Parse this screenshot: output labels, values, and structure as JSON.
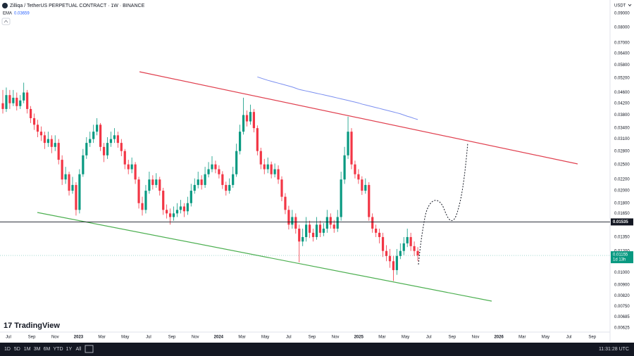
{
  "chart_data": {
    "type": "candlestick",
    "title": "Zilliqa / TetherUS PERPETUAL CONTRACT · 1W · BINANCE",
    "currency": "USDT",
    "log_scale": true,
    "grid": false,
    "up_color": "#089981",
    "down_color": "#f23645",
    "ylim": [
      0.00575,
      0.1008
    ],
    "yticks": [
      {
        "value": 0.09,
        "label": "0.09000"
      },
      {
        "value": 0.08,
        "label": "0.08000"
      },
      {
        "value": 0.07,
        "label": "0.07000"
      },
      {
        "value": 0.064,
        "label": "0.06400"
      },
      {
        "value": 0.058,
        "label": "0.05800"
      },
      {
        "value": 0.052,
        "label": "0.05200"
      },
      {
        "value": 0.046,
        "label": "0.04600"
      },
      {
        "value": 0.042,
        "label": "0.04200"
      },
      {
        "value": 0.038,
        "label": "0.03800"
      },
      {
        "value": 0.034,
        "label": "0.03400"
      },
      {
        "value": 0.031,
        "label": "0.03100"
      },
      {
        "value": 0.028,
        "label": "0.02800"
      },
      {
        "value": 0.025,
        "label": "0.02500"
      },
      {
        "value": 0.022,
        "label": "0.02200"
      },
      {
        "value": 0.02,
        "label": "0.02000"
      },
      {
        "value": 0.018,
        "label": "0.01800"
      },
      {
        "value": 0.0165,
        "label": "0.01650"
      },
      {
        "value": 0.0135,
        "label": "0.01350"
      },
      {
        "value": 0.012,
        "label": "0.01200"
      },
      {
        "value": 0.01,
        "label": "0.01000"
      },
      {
        "value": 0.009,
        "label": "0.00900"
      },
      {
        "value": 0.0082,
        "label": "0.00820"
      },
      {
        "value": 0.0075,
        "label": "0.00750"
      },
      {
        "value": 0.00685,
        "label": "0.00685"
      },
      {
        "value": 0.00625,
        "label": "0.00625"
      }
    ],
    "xtick_labels": [
      "Jul",
      "Sep",
      "Nov",
      "2023",
      "Mar",
      "May",
      "Jul",
      "Sep",
      "Nov",
      "2024",
      "Mar",
      "May",
      "Jul",
      "Sep",
      "Nov",
      "2025",
      "Mar",
      "May",
      "Jul",
      "Sep",
      "Nov",
      "2026",
      "Mar",
      "May",
      "Jul",
      "Sep"
    ],
    "ohlc": [
      [
        0.042,
        0.047,
        0.0385,
        0.04
      ],
      [
        0.04,
        0.048,
        0.039,
        0.045
      ],
      [
        0.045,
        0.047,
        0.04,
        0.042
      ],
      [
        0.042,
        0.047,
        0.041,
        0.044
      ],
      [
        0.044,
        0.046,
        0.0395,
        0.041
      ],
      [
        0.041,
        0.045,
        0.04,
        0.043
      ],
      [
        0.043,
        0.05,
        0.042,
        0.046
      ],
      [
        0.046,
        0.047,
        0.0385,
        0.04
      ],
      [
        0.04,
        0.041,
        0.0355,
        0.037
      ],
      [
        0.037,
        0.0385,
        0.0335,
        0.035
      ],
      [
        0.035,
        0.0365,
        0.0315,
        0.033
      ],
      [
        0.033,
        0.0345,
        0.0305,
        0.032
      ],
      [
        0.032,
        0.033,
        0.0285,
        0.03
      ],
      [
        0.03,
        0.033,
        0.029,
        0.031
      ],
      [
        0.031,
        0.032,
        0.0275,
        0.029
      ],
      [
        0.029,
        0.032,
        0.028,
        0.03
      ],
      [
        0.03,
        0.031,
        0.025,
        0.026
      ],
      [
        0.026,
        0.027,
        0.021,
        0.022
      ],
      [
        0.022,
        0.0245,
        0.0212,
        0.023
      ],
      [
        0.023,
        0.0235,
        0.0192,
        0.02
      ],
      [
        0.02,
        0.0225,
        0.0195,
        0.021
      ],
      [
        0.021,
        0.0215,
        0.0162,
        0.017
      ],
      [
        0.017,
        0.024,
        0.0165,
        0.023
      ],
      [
        0.023,
        0.0285,
        0.0225,
        0.027
      ],
      [
        0.027,
        0.0315,
        0.0262,
        0.03
      ],
      [
        0.03,
        0.033,
        0.029,
        0.031
      ],
      [
        0.031,
        0.035,
        0.03,
        0.033
      ],
      [
        0.033,
        0.037,
        0.032,
        0.035
      ],
      [
        0.035,
        0.0355,
        0.028,
        0.029
      ],
      [
        0.029,
        0.03,
        0.0255,
        0.027
      ],
      [
        0.027,
        0.0315,
        0.0262,
        0.03
      ],
      [
        0.03,
        0.033,
        0.029,
        0.031
      ],
      [
        0.031,
        0.034,
        0.03,
        0.032
      ],
      [
        0.032,
        0.033,
        0.0288,
        0.03
      ],
      [
        0.03,
        0.031,
        0.0268,
        0.028
      ],
      [
        0.028,
        0.0285,
        0.024,
        0.025
      ],
      [
        0.025,
        0.026,
        0.023,
        0.024
      ],
      [
        0.024,
        0.0265,
        0.0232,
        0.025
      ],
      [
        0.025,
        0.0255,
        0.0212,
        0.022
      ],
      [
        0.022,
        0.0225,
        0.0172,
        0.018
      ],
      [
        0.018,
        0.019,
        0.0162,
        0.017
      ],
      [
        0.017,
        0.021,
        0.0165,
        0.02
      ],
      [
        0.02,
        0.0235,
        0.0195,
        0.022
      ],
      [
        0.022,
        0.0228,
        0.0202,
        0.021
      ],
      [
        0.021,
        0.0232,
        0.0205,
        0.022
      ],
      [
        0.022,
        0.0225,
        0.0192,
        0.02
      ],
      [
        0.02,
        0.0205,
        0.0163,
        0.017
      ],
      [
        0.017,
        0.0178,
        0.0158,
        0.0165
      ],
      [
        0.0165,
        0.0172,
        0.015,
        0.016
      ],
      [
        0.016,
        0.0175,
        0.0155,
        0.0165
      ],
      [
        0.0165,
        0.018,
        0.016,
        0.017
      ],
      [
        0.017,
        0.0185,
        0.0165,
        0.0175
      ],
      [
        0.0175,
        0.018,
        0.016,
        0.0168
      ],
      [
        0.0168,
        0.019,
        0.0163,
        0.018
      ],
      [
        0.018,
        0.0212,
        0.0175,
        0.02
      ],
      [
        0.02,
        0.0222,
        0.0195,
        0.021
      ],
      [
        0.021,
        0.0235,
        0.0204,
        0.022
      ],
      [
        0.022,
        0.0228,
        0.0202,
        0.021
      ],
      [
        0.021,
        0.0245,
        0.0205,
        0.023
      ],
      [
        0.023,
        0.0255,
        0.0224,
        0.024
      ],
      [
        0.024,
        0.0268,
        0.0234,
        0.025
      ],
      [
        0.025,
        0.0258,
        0.0232,
        0.024
      ],
      [
        0.024,
        0.0248,
        0.0222,
        0.023
      ],
      [
        0.023,
        0.0236,
        0.0203,
        0.021
      ],
      [
        0.021,
        0.0216,
        0.0192,
        0.02
      ],
      [
        0.02,
        0.0222,
        0.0195,
        0.021
      ],
      [
        0.021,
        0.0245,
        0.0205,
        0.023
      ],
      [
        0.023,
        0.0298,
        0.0225,
        0.028
      ],
      [
        0.028,
        0.035,
        0.0272,
        0.033
      ],
      [
        0.033,
        0.044,
        0.0322,
        0.038
      ],
      [
        0.038,
        0.0395,
        0.0345,
        0.036
      ],
      [
        0.036,
        0.0415,
        0.035,
        0.039
      ],
      [
        0.039,
        0.04,
        0.0328,
        0.034
      ],
      [
        0.034,
        0.0348,
        0.027,
        0.028
      ],
      [
        0.028,
        0.0288,
        0.024,
        0.025
      ],
      [
        0.025,
        0.0262,
        0.023,
        0.024
      ],
      [
        0.024,
        0.0265,
        0.0232,
        0.025
      ],
      [
        0.025,
        0.0256,
        0.0222,
        0.023
      ],
      [
        0.023,
        0.0252,
        0.0224,
        0.024
      ],
      [
        0.024,
        0.0248,
        0.0212,
        0.022
      ],
      [
        0.022,
        0.0226,
        0.0183,
        0.019
      ],
      [
        0.019,
        0.0196,
        0.0164,
        0.017
      ],
      [
        0.017,
        0.0176,
        0.0144,
        0.015
      ],
      [
        0.015,
        0.017,
        0.0145,
        0.016
      ],
      [
        0.016,
        0.0165,
        0.0139,
        0.0145
      ],
      [
        0.0145,
        0.015,
        0.0109,
        0.013
      ],
      [
        0.013,
        0.0145,
        0.0125,
        0.0135
      ],
      [
        0.0135,
        0.016,
        0.013,
        0.015
      ],
      [
        0.015,
        0.0155,
        0.0134,
        0.014
      ],
      [
        0.014,
        0.0145,
        0.013,
        0.0135
      ],
      [
        0.0135,
        0.016,
        0.0132,
        0.015
      ],
      [
        0.015,
        0.0155,
        0.0135,
        0.014
      ],
      [
        0.014,
        0.0152,
        0.0136,
        0.0145
      ],
      [
        0.0145,
        0.017,
        0.014,
        0.016
      ],
      [
        0.016,
        0.0165,
        0.0145,
        0.015
      ],
      [
        0.015,
        0.0156,
        0.014,
        0.0145
      ],
      [
        0.0145,
        0.017,
        0.0141,
        0.016
      ],
      [
        0.016,
        0.0235,
        0.0155,
        0.022
      ],
      [
        0.022,
        0.029,
        0.0212,
        0.027
      ],
      [
        0.027,
        0.0375,
        0.0262,
        0.033
      ],
      [
        0.033,
        0.034,
        0.024,
        0.025
      ],
      [
        0.025,
        0.0258,
        0.0222,
        0.023
      ],
      [
        0.023,
        0.024,
        0.0212,
        0.022
      ],
      [
        0.022,
        0.0226,
        0.0193,
        0.02
      ],
      [
        0.02,
        0.0222,
        0.0195,
        0.021
      ],
      [
        0.021,
        0.0215,
        0.0155,
        0.016
      ],
      [
        0.016,
        0.0165,
        0.014,
        0.0145
      ],
      [
        0.0145,
        0.015,
        0.0135,
        0.014
      ],
      [
        0.014,
        0.0145,
        0.0128,
        0.0135
      ],
      [
        0.0135,
        0.014,
        0.0114,
        0.012
      ],
      [
        0.012,
        0.0126,
        0.011,
        0.0115
      ],
      [
        0.0115,
        0.0122,
        0.0104,
        0.011
      ],
      [
        0.011,
        0.0115,
        0.0093,
        0.0102
      ],
      [
        0.0102,
        0.0122,
        0.0098,
        0.0115
      ],
      [
        0.0115,
        0.0128,
        0.0112,
        0.012
      ],
      [
        0.012,
        0.0135,
        0.0116,
        0.0128
      ],
      [
        0.0128,
        0.0145,
        0.0124,
        0.0135
      ],
      [
        0.0135,
        0.014,
        0.012,
        0.0125
      ],
      [
        0.0125,
        0.013,
        0.0115,
        0.012
      ],
      [
        0.012,
        0.0124,
        0.011,
        0.01155
      ]
    ],
    "ema": {
      "name": "EMA",
      "color": "#7b8ff0",
      "values": [
        null,
        null,
        null,
        null,
        null,
        null,
        null,
        null,
        null,
        null,
        null,
        null,
        null,
        null,
        null,
        null,
        null,
        null,
        null,
        null,
        null,
        null,
        null,
        null,
        null,
        null,
        null,
        null,
        null,
        null,
        null,
        null,
        null,
        null,
        null,
        null,
        null,
        null,
        null,
        null,
        null,
        null,
        null,
        null,
        null,
        null,
        null,
        null,
        null,
        null,
        null,
        null,
        null,
        null,
        null,
        null,
        null,
        null,
        null,
        null,
        null,
        null,
        null,
        null,
        null,
        null,
        null,
        null,
        null,
        null,
        null,
        null,
        null,
        0.0525,
        0.052,
        0.0515,
        0.051,
        0.0506,
        0.0502,
        0.0498,
        0.0494,
        0.049,
        0.0486,
        0.0482,
        0.0477,
        0.0472,
        0.0469,
        0.0466,
        0.0463,
        0.046,
        0.0457,
        0.0454,
        0.0451,
        0.0448,
        0.0445,
        0.0442,
        0.0439,
        0.0436,
        0.0433,
        0.043,
        0.0427,
        0.0424,
        0.0421,
        0.0417,
        0.0414,
        0.0411,
        0.0408,
        0.0405,
        0.0402,
        0.0399,
        0.0396,
        0.0393,
        0.039,
        0.0387,
        0.0384,
        0.038,
        0.0376,
        0.0373,
        0.0369,
        0.03659
      ]
    },
    "hline": {
      "value": 0.01535,
      "color": "#131722"
    },
    "countdown": "1d 13h",
    "brand": "TradingView",
    "timeframes": [
      "1D",
      "5D",
      "1M",
      "3M",
      "6M",
      "YTD",
      "1Y",
      "All"
    ],
    "clock": "11:31:28 UTC"
  }
}
